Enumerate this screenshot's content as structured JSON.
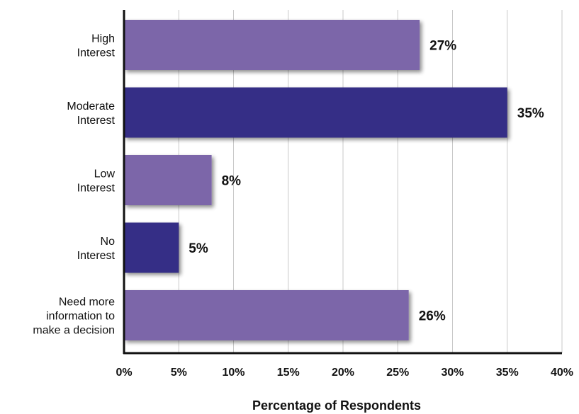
{
  "chart_data": {
    "type": "bar",
    "orientation": "horizontal",
    "categories": [
      "High Interest",
      "Moderate Interest",
      "Low Interest",
      "No Interest",
      "Need more information to make a decision"
    ],
    "category_lines": [
      [
        "High",
        "Interest"
      ],
      [
        "Moderate",
        "Interest"
      ],
      [
        "Low",
        "Interest"
      ],
      [
        "No",
        "Interest"
      ],
      [
        "Need more",
        "information to",
        "make a decision"
      ]
    ],
    "values": [
      27,
      35,
      8,
      5,
      26
    ],
    "value_labels": [
      "27%",
      "35%",
      "8%",
      "5%",
      "26%"
    ],
    "bar_colors": [
      "#7b66a9",
      "#362e86",
      "#7b66a9",
      "#362e86",
      "#7b66a9"
    ],
    "xlim": [
      0,
      40
    ],
    "x_ticks": [
      0,
      5,
      10,
      15,
      20,
      25,
      30,
      35,
      40
    ],
    "x_tick_labels": [
      "0%",
      "5%",
      "10%",
      "15%",
      "20%",
      "25%",
      "30%",
      "35%",
      "40%"
    ],
    "xlabel": "Percentage of Respondents",
    "ylabel": "",
    "title": "",
    "grid": "vertical",
    "legend": "none"
  }
}
